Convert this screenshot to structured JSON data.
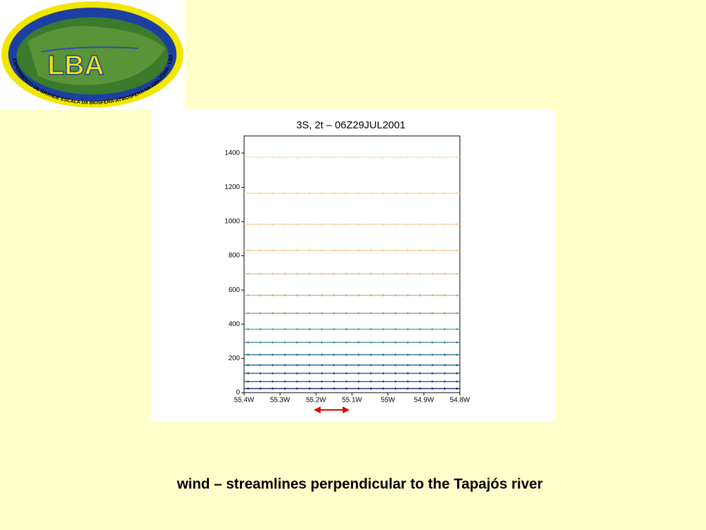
{
  "logo": {
    "title": "LBA",
    "ring_text": "EXPERIMENTO DE GRANDE ESCALA DA BIOSFERA-ATMOSFERA NA AMAZÔNIA - LBA"
  },
  "chart_data": {
    "type": "streamline",
    "title": "3S, 2t – 06Z29JUL2001",
    "xlim": [
      -55.4,
      -54.8
    ],
    "xticks": [
      {
        "value": -55.4,
        "label": "55.4W"
      },
      {
        "value": -55.3,
        "label": "55.3W"
      },
      {
        "value": -55.2,
        "label": "55.2W"
      },
      {
        "value": -55.1,
        "label": "55.1W"
      },
      {
        "value": -55.0,
        "label": "55W"
      },
      {
        "value": -54.9,
        "label": "54.9W"
      },
      {
        "value": -54.8,
        "label": "54.8W"
      }
    ],
    "ylim": [
      0,
      1500
    ],
    "yticks": [
      0,
      200,
      400,
      600,
      800,
      1000,
      1200,
      1400
    ],
    "levels": [
      24,
      65,
      113,
      161,
      222,
      294,
      371,
      464,
      569,
      694,
      831,
      984,
      1165,
      1375
    ],
    "colors": [
      "#0a1f6e",
      "#1a3c8c",
      "#14457a",
      "#1d5a8a",
      "#236e96",
      "#3a7f9a",
      "#5a9a90",
      "#88a878",
      "#b0b088",
      "#d8c090",
      "#e8c890",
      "#f0d098",
      "#f4d8a0",
      "#f8e0a8"
    ]
  },
  "caption": "wind – streamlines perpendicular to the Tapajós river"
}
